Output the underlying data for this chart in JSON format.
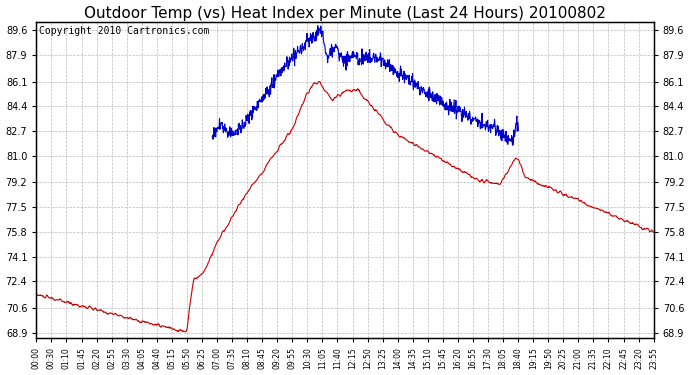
{
  "title": "Outdoor Temp (vs) Heat Index per Minute (Last 24 Hours) 20100802",
  "copyright_text": "Copyright 2010 Cartronics.com",
  "yticks": [
    68.9,
    70.6,
    72.4,
    74.1,
    75.8,
    77.5,
    79.2,
    81.0,
    82.7,
    84.4,
    86.1,
    87.9,
    89.6
  ],
  "ylim": [
    68.5,
    90.2
  ],
  "xlim": [
    0,
    1439
  ],
  "xtick_labels": [
    "00:00",
    "00:30",
    "01:10",
    "01:45",
    "02:20",
    "02:55",
    "03:30",
    "04:05",
    "04:40",
    "05:15",
    "05:50",
    "06:25",
    "07:00",
    "07:35",
    "08:10",
    "08:45",
    "09:20",
    "09:55",
    "10:30",
    "11:05",
    "11:40",
    "12:15",
    "12:50",
    "13:25",
    "14:00",
    "14:35",
    "15:10",
    "15:45",
    "16:20",
    "16:55",
    "17:30",
    "18:05",
    "18:40",
    "19:15",
    "19:50",
    "20:25",
    "21:00",
    "21:35",
    "22:10",
    "22:45",
    "23:20",
    "23:55"
  ],
  "bg_color": "#ffffff",
  "plot_bg_color": "#ffffff",
  "grid_color": "#aaaaaa",
  "red_color": "#cc0000",
  "blue_color": "#0000cc",
  "title_fontsize": 11,
  "copyright_fontsize": 7
}
